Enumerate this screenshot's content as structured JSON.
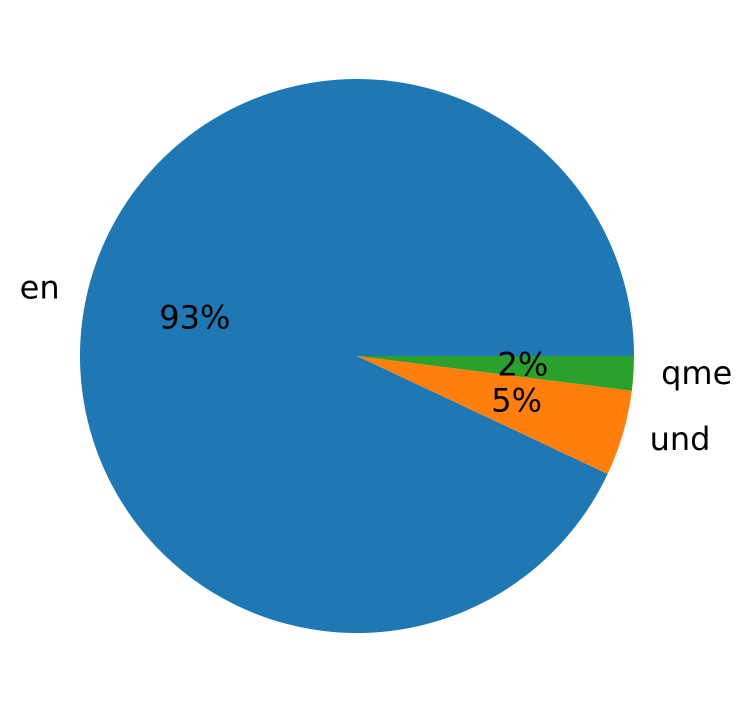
{
  "chart_data": {
    "type": "pie",
    "categories": [
      "en",
      "und",
      "qme"
    ],
    "values": [
      93,
      5,
      2
    ],
    "value_labels": [
      "93%",
      "5%",
      "2%"
    ],
    "colors": [
      "#1f77b4",
      "#ff7f0e",
      "#2ca02c"
    ]
  }
}
